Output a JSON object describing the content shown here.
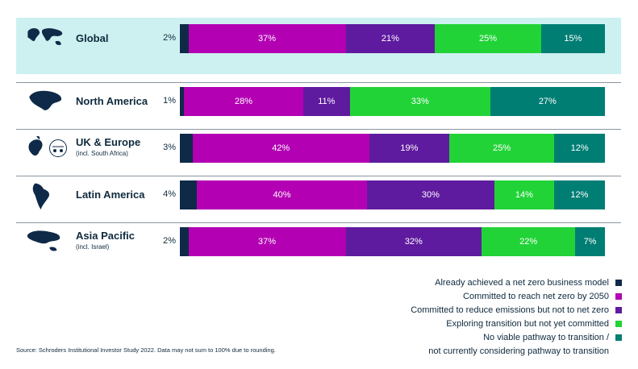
{
  "chart_data": {
    "type": "bar",
    "stacked": true,
    "orientation": "horizontal",
    "categories": [
      "Global",
      "North America",
      "UK & Europe",
      "Latin America",
      "Asia Pacific"
    ],
    "category_notes": [
      "",
      "",
      "(incl. South Africa)",
      "",
      "(incl. Israel)"
    ],
    "series": [
      {
        "name": "Already achieved a net zero business model",
        "color": "#0f2a48",
        "values": [
          2,
          1,
          3,
          4,
          2
        ],
        "labels": [
          "2%",
          "1%",
          "3%",
          "4%",
          "2%"
        ]
      },
      {
        "name": "Committed to reach net zero by 2050",
        "color": "#b300b3",
        "values": [
          37,
          28,
          42,
          40,
          37
        ],
        "labels": [
          "37%",
          "28%",
          "42%",
          "40%",
          "37%"
        ]
      },
      {
        "name": "Committed to reduce emissions but not to net zero",
        "color": "#5f1b9f",
        "values": [
          21,
          11,
          19,
          30,
          32
        ],
        "labels": [
          "21%",
          "11%",
          "19%",
          "30%",
          "32%"
        ]
      },
      {
        "name": "Exploring transition but not yet committed",
        "color": "#22d338",
        "values": [
          25,
          33,
          25,
          14,
          22
        ],
        "labels": [
          "25%",
          "33%",
          "25%",
          "14%",
          "22%"
        ]
      },
      {
        "name": "No viable pathway to transition / not currently considering pathway to transition",
        "color": "#007e74",
        "values": [
          15,
          27,
          12,
          12,
          7
        ],
        "labels": [
          "15%",
          "27%",
          "12%",
          "12%",
          "7%"
        ]
      }
    ],
    "legend_placement": "bottom-right",
    "grid": false,
    "highlighted_category": "Global"
  },
  "legend": {
    "items": [
      {
        "text": "Already achieved a net zero business model",
        "color": "#0f2a48"
      },
      {
        "text": "Committed to reach net zero by 2050",
        "color": "#b300b3"
      },
      {
        "text": "Committed to reduce emissions but not to net zero",
        "color": "#5f1b9f"
      },
      {
        "text": "Exploring transition but not yet committed",
        "color": "#22d338"
      },
      {
        "text": "No viable pathway to transition /",
        "color": "#007e74"
      },
      {
        "text": "not currently considering pathway to transition",
        "color": ""
      }
    ]
  },
  "source_note": "Source: Schroders Institutional Investor Study 2022. Data may not sum to 100% due to rounding.",
  "icons": {
    "region_map": "world-region-map-icon",
    "ecb_logo": "europe-circle-icon"
  },
  "colors": {
    "highlight_bg": "#cdf0f0",
    "text": "#0f2a3d"
  }
}
